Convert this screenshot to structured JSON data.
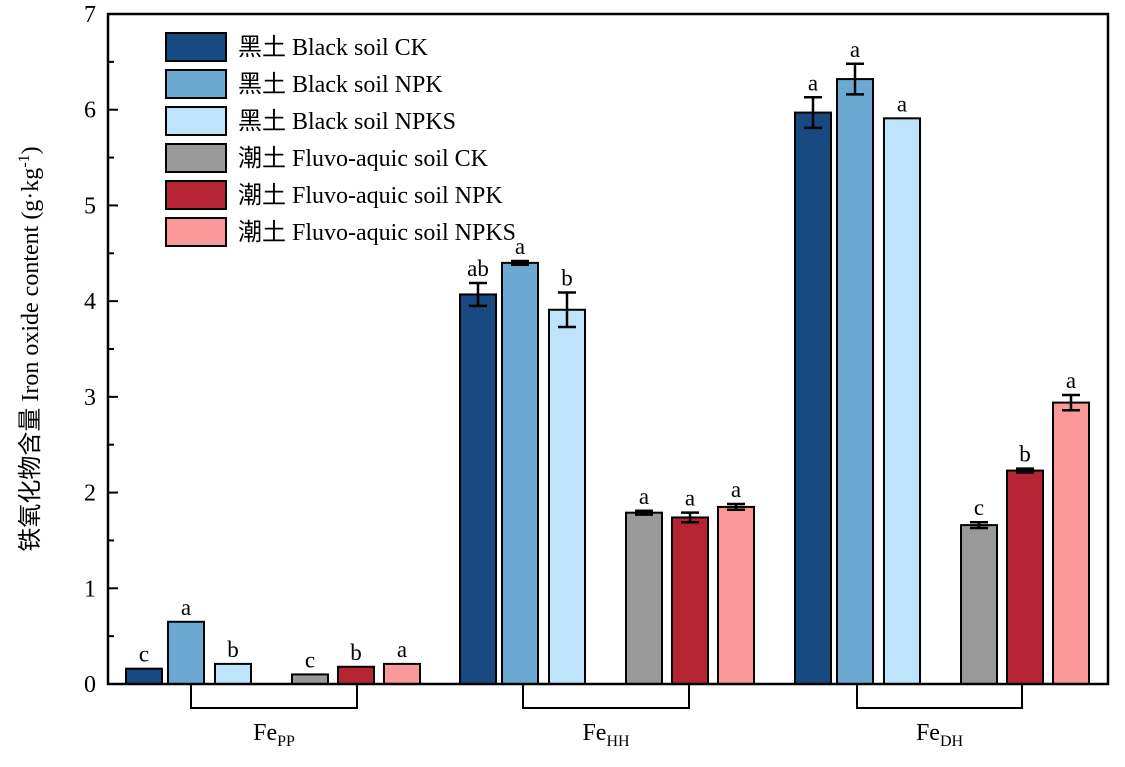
{
  "chart_data": {
    "type": "bar",
    "ylabel_cn": "铁氧化物含量",
    "ylabel_en": "Iron oxide content (g·kg",
    "ylabel_sup": "-1",
    "ylabel_end": ")",
    "ylim": [
      0,
      7
    ],
    "yticks": [
      "0",
      "1",
      "2",
      "3",
      "4",
      "5",
      "6",
      "7"
    ],
    "categories": [
      {
        "base": "Fe",
        "sub": "PP"
      },
      {
        "base": "Fe",
        "sub": "HH"
      },
      {
        "base": "Fe",
        "sub": "DH"
      }
    ],
    "legend_position": "top-left",
    "series": [
      {
        "name": "黑土 Black soil CK",
        "color": "#164a80",
        "values": [
          0.16,
          4.07,
          5.97
        ],
        "errors": [
          0.0,
          0.12,
          0.16
        ],
        "labels": [
          "c",
          "ab",
          "a"
        ]
      },
      {
        "name": "黑土 Black soil NPK",
        "color": "#6ca9d2",
        "values": [
          0.65,
          4.4,
          6.32
        ],
        "errors": [
          0.0,
          0.02,
          0.16
        ],
        "labels": [
          "a",
          "a",
          "a"
        ]
      },
      {
        "name": "黑土 Black soil NPKS",
        "color": "#bee4fb",
        "values": [
          0.21,
          3.91,
          5.91
        ],
        "errors": [
          0.0,
          0.18,
          0.0
        ],
        "labels": [
          "b",
          "b",
          "a"
        ]
      },
      {
        "name": "潮土 Fluvo-aquic soil CK",
        "color": "#999999",
        "values": [
          0.1,
          1.79,
          1.66
        ],
        "errors": [
          0.0,
          0.02,
          0.03
        ],
        "labels": [
          "c",
          "a",
          "c"
        ]
      },
      {
        "name": "潮土 Fluvo-aquic soil NPK",
        "color": "#b42433",
        "values": [
          0.18,
          1.74,
          2.23
        ],
        "errors": [
          0.0,
          0.05,
          0.02
        ],
        "labels": [
          "b",
          "a",
          "b"
        ]
      },
      {
        "name": "潮土 Fluvo-aquic soil NPKS",
        "color": "#f9999a",
        "values": [
          0.21,
          1.85,
          2.94
        ],
        "errors": [
          0.0,
          0.03,
          0.08
        ],
        "labels": [
          "a",
          "a",
          "a"
        ]
      }
    ]
  }
}
